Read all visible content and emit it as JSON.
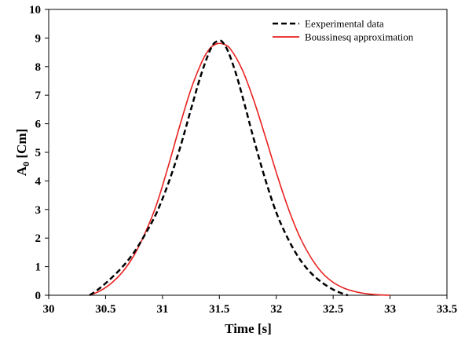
{
  "chart_data": {
    "type": "line",
    "title": "",
    "xlabel": "Time [s]",
    "ylabel": {
      "main": "A",
      "sub": "0",
      "unit": " [Cm]"
    },
    "xlim": [
      30,
      33.5
    ],
    "ylim": [
      0,
      10
    ],
    "xticks": [
      30,
      30.5,
      31,
      31.5,
      32,
      32.5,
      33,
      33.5
    ],
    "yticks": [
      0,
      1,
      2,
      3,
      4,
      5,
      6,
      7,
      8,
      9,
      10
    ],
    "xtick_labels": [
      "30",
      "30.5",
      "31",
      "31.5",
      "32",
      "32.5",
      "33",
      "33.5"
    ],
    "ytick_labels": [
      "0",
      "1",
      "2",
      "3",
      "4",
      "5",
      "6",
      "7",
      "8",
      "9",
      "10"
    ],
    "grid": false,
    "legend_position": "top-right",
    "series": [
      {
        "name": "Eexperimental data",
        "color": "#000000",
        "style": "dashed",
        "x": [
          30.36,
          30.45,
          30.55,
          30.65,
          30.75,
          30.85,
          30.95,
          31.05,
          31.15,
          31.25,
          31.33,
          31.4,
          31.45,
          31.5,
          31.53,
          31.58,
          31.65,
          31.72,
          31.8,
          31.9,
          32.0,
          32.1,
          32.2,
          32.3,
          32.4,
          32.5,
          32.58,
          32.63
        ],
        "y": [
          0.0,
          0.25,
          0.6,
          1.0,
          1.5,
          2.15,
          2.9,
          3.9,
          5.1,
          6.5,
          7.6,
          8.4,
          8.8,
          8.9,
          8.85,
          8.5,
          7.7,
          6.7,
          5.5,
          4.1,
          2.9,
          2.0,
          1.3,
          0.8,
          0.45,
          0.2,
          0.06,
          0.0
        ]
      },
      {
        "name": "Boussinesq approximation",
        "color": "#e8201e",
        "style": "solid",
        "x": [
          30.36,
          30.45,
          30.55,
          30.65,
          30.75,
          30.85,
          30.95,
          31.05,
          31.15,
          31.25,
          31.35,
          31.42,
          31.48,
          31.54,
          31.6,
          31.7,
          31.8,
          31.9,
          32.0,
          32.1,
          32.2,
          32.3,
          32.4,
          32.5,
          32.6,
          32.7,
          32.8,
          32.9,
          33.0
        ],
        "y": [
          0.0,
          0.15,
          0.42,
          0.82,
          1.4,
          2.2,
          3.2,
          4.5,
          5.9,
          7.2,
          8.2,
          8.65,
          8.8,
          8.78,
          8.6,
          7.9,
          6.85,
          5.6,
          4.3,
          3.1,
          2.1,
          1.35,
          0.8,
          0.45,
          0.24,
          0.12,
          0.05,
          0.015,
          0.0
        ]
      }
    ]
  }
}
